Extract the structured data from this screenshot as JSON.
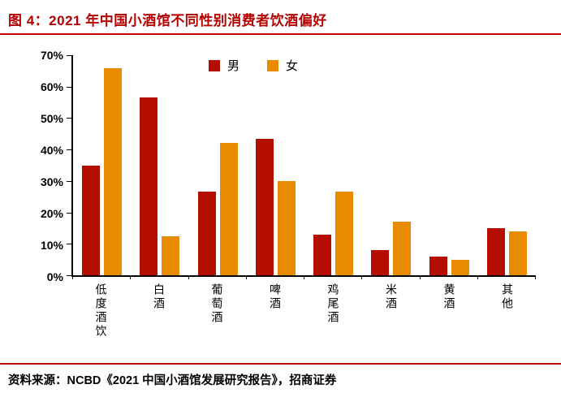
{
  "header": {
    "title": "图 4：2021 年中国小酒馆不同性别消费者饮酒偏好"
  },
  "footer": {
    "source": "资料来源：NCBD《2021 中国小酒馆发展研究报告》，招商证券"
  },
  "colors": {
    "title": "#B30000",
    "rule": "#C00000",
    "male": "#B30E00",
    "female": "#E88B00",
    "axis": "#000000"
  },
  "chart_data": {
    "type": "bar",
    "title": "2021 年中国小酒馆不同性别消费者饮酒偏好",
    "categories": [
      "低度酒饮",
      "白酒",
      "葡萄酒",
      "啤酒",
      "鸡尾酒",
      "米酒",
      "黄酒",
      "其他"
    ],
    "series": [
      {
        "name": "男",
        "color": "#B30E00",
        "values": [
          35,
          56.5,
          26.5,
          43.5,
          13,
          8,
          6,
          15
        ]
      },
      {
        "name": "女",
        "color": "#E88B00",
        "values": [
          66,
          12.5,
          42,
          30,
          26.5,
          17,
          5,
          14
        ]
      }
    ],
    "xlabel": "",
    "ylabel": "",
    "ylim": [
      0,
      70
    ],
    "yticks": [
      "0%",
      "10%",
      "20%",
      "30%",
      "40%",
      "50%",
      "60%",
      "70%"
    ],
    "grid": false,
    "legend_position": "top-center",
    "value_unit": "%"
  }
}
